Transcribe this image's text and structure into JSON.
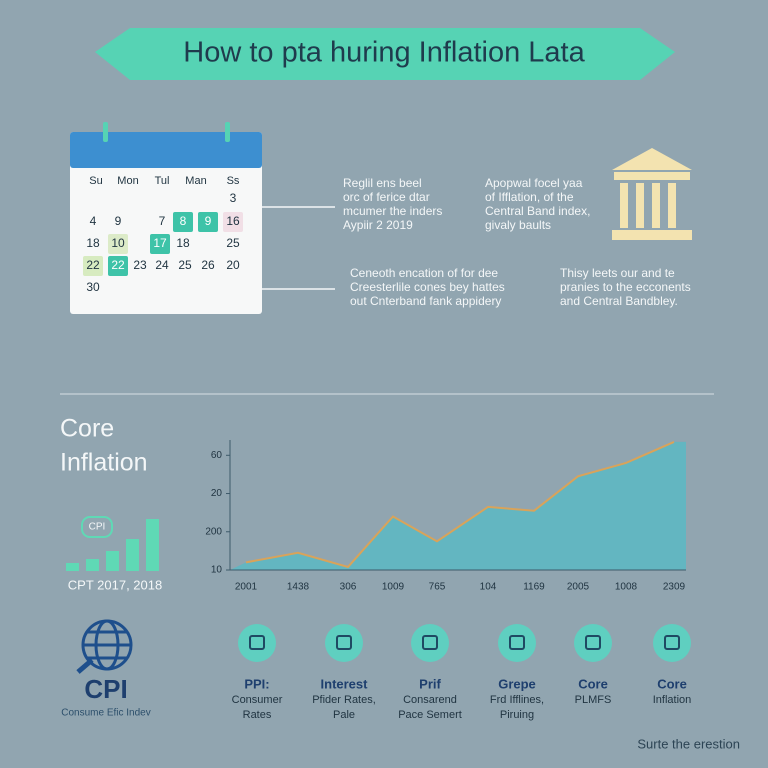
{
  "header": {
    "title": "How to pta huring Inflation Lata"
  },
  "calendar": {
    "weekdays": [
      "Su",
      "Mon",
      "Tul",
      "Man",
      "Ss"
    ],
    "days": [
      "3",
      "4",
      "9",
      "7",
      "8",
      "9",
      "16",
      "18",
      "10",
      "17",
      "18",
      "25",
      "22",
      "22",
      "23",
      "24",
      "25",
      "26",
      "20",
      "30"
    ]
  },
  "notes": [
    {
      "lines": [
        "Reglil ens beel",
        "orc of ferice dtar",
        "mcumer the inders",
        "Aypiir 2 2019"
      ]
    },
    {
      "lines": [
        "Apopwal focel yaa",
        "of Ifflation, of the",
        "Central Band index,",
        "givaly baults"
      ]
    },
    {
      "lines": [
        "Ceneoth encation of for dee",
        "Creesterlile cones bey hattes",
        "out Cnterband fank appidery"
      ]
    },
    {
      "lines": [
        "Thisy leets our and te",
        "pranies to the ecconents",
        "and Central Bandbley."
      ]
    }
  ],
  "core_panel": {
    "title_lines": [
      "Core",
      "Inflation"
    ],
    "badge": "CPI",
    "caption": "CPT 2017, 2018"
  },
  "chart_data": {
    "type": "area",
    "categories": [
      "2001",
      "1438",
      "306",
      "1009",
      "765",
      "104",
      "1169",
      "2005",
      "1008",
      "2309"
    ],
    "values": [
      0.2,
      0.45,
      0.08,
      1.4,
      0.75,
      1.65,
      1.55,
      2.45,
      2.8,
      3.35
    ],
    "color": "#5bb8c4",
    "line_color": "#d9a35a",
    "ylim": [
      0,
      3.4
    ],
    "yticks": [
      {
        "value": 0,
        "label": "10"
      },
      {
        "value": 1,
        "label": "200"
      },
      {
        "value": 2,
        "label": "20"
      },
      {
        "value": 3,
        "label": "60"
      }
    ]
  },
  "cpi": {
    "title": "CPI",
    "subtitle": "Consume Efic Indev"
  },
  "icons": [
    {
      "lines": [
        "PPI:",
        "Consumer",
        "Rates"
      ]
    },
    {
      "lines": [
        "Interest",
        "Pfider Rates,",
        "Pale"
      ]
    },
    {
      "lines": [
        "Prif",
        "Consarend",
        "Pace Semert"
      ]
    },
    {
      "lines": [
        "Grepe",
        "Frd Ifflines,",
        "Piruing"
      ]
    },
    {
      "lines": [
        "Core",
        "PLMFS"
      ]
    },
    {
      "lines": [
        "Core",
        "Inflation"
      ]
    }
  ],
  "footer": "Surte the erestion"
}
